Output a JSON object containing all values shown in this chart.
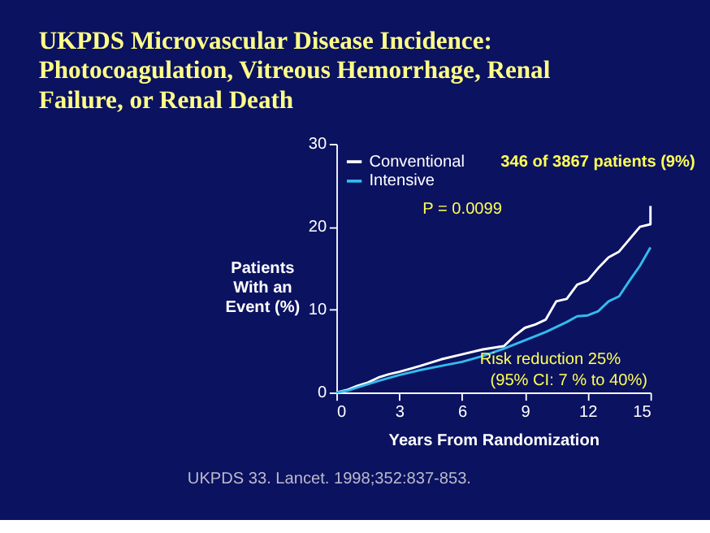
{
  "chart_data": {
    "type": "line",
    "title": "UKPDS Microvascular Disease Incidence: Photocoagulation, Vitreous Hemorrhage, Renal Failure, or Renal Death",
    "xlabel": "Years From Randomization",
    "ylabel": "Patients With an Event (%)",
    "series": [
      {
        "name": "Conventional",
        "color": "#ffffff",
        "x": [
          0,
          0.5,
          1,
          1.5,
          2,
          2.5,
          3,
          4,
          5,
          6,
          7,
          8,
          8.5,
          9,
          9.5,
          10,
          10.5,
          11,
          11.5,
          12,
          12.5,
          13,
          13.5,
          14,
          14.5,
          15,
          15
        ],
        "values": [
          0,
          0.3,
          0.8,
          1.2,
          1.8,
          2.2,
          2.5,
          3.2,
          4.0,
          4.6,
          5.2,
          5.6,
          6.8,
          7.8,
          8.2,
          8.8,
          11,
          11.3,
          13,
          13.5,
          15,
          16.3,
          17,
          18.5,
          20,
          20.3,
          22.5
        ]
      },
      {
        "name": "Intensive",
        "color": "#33bbee",
        "x": [
          0,
          0.5,
          1,
          1.5,
          2,
          3,
          4,
          5,
          6,
          7,
          8,
          9,
          10,
          11,
          11.5,
          12,
          12.5,
          13,
          13.5,
          14,
          14.5,
          15
        ],
        "values": [
          0,
          0.2,
          0.6,
          1.0,
          1.4,
          2.1,
          2.7,
          3.2,
          3.7,
          4.4,
          5.3,
          6.3,
          7.3,
          8.5,
          9.2,
          9.3,
          9.8,
          11,
          11.6,
          13.5,
          15.3,
          17.5
        ]
      }
    ],
    "xlim": [
      0,
      15
    ],
    "xticks": [
      0,
      3,
      6,
      9,
      12,
      15
    ],
    "ylim": [
      0,
      30
    ],
    "yticks": [
      0,
      10,
      20,
      30
    ],
    "grid": false,
    "legend": "top left",
    "marker": "none",
    "line_style": "solid",
    "annotations": [
      "346 of 3867 patients (9%)",
      "P = 0.0099",
      "Risk reduction 25%",
      "(95% CI: 7 % to 40%)",
      "UKPDS 33. Lancet. 1998;352:837-853."
    ]
  }
}
